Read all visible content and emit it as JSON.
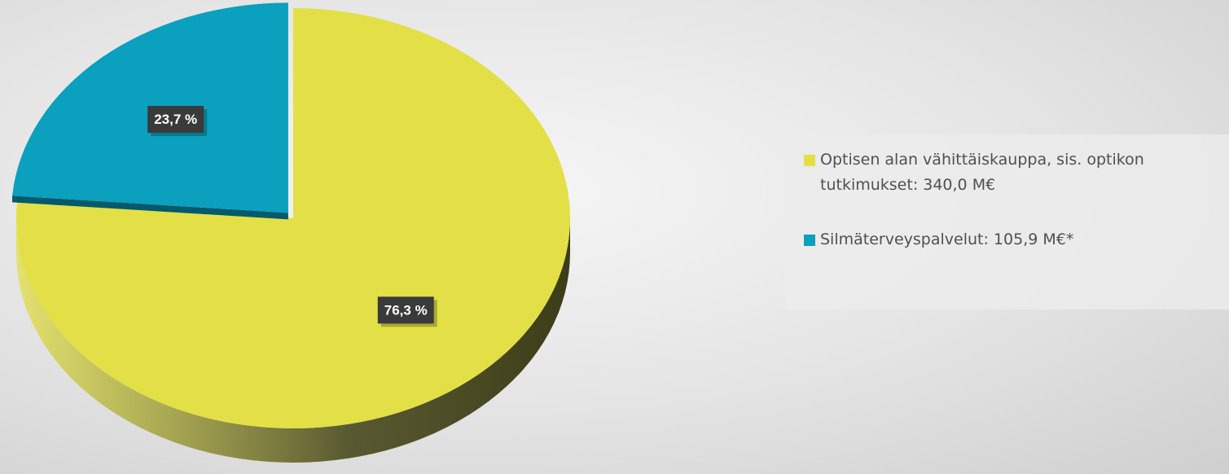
{
  "chart_data": {
    "type": "pie",
    "categories": [
      "Optisen alan vähittäiskauppa, sis. optikon tutkimukset: 340,0 M€",
      "Silmäterveyspalvelut: 105,9 M€*"
    ],
    "values": [
      76.3,
      23.7
    ],
    "value_labels": [
      "76,3 %",
      "23,7 %"
    ],
    "colors": [
      "#e2e046",
      "#0aa0be"
    ],
    "legend": "right"
  }
}
